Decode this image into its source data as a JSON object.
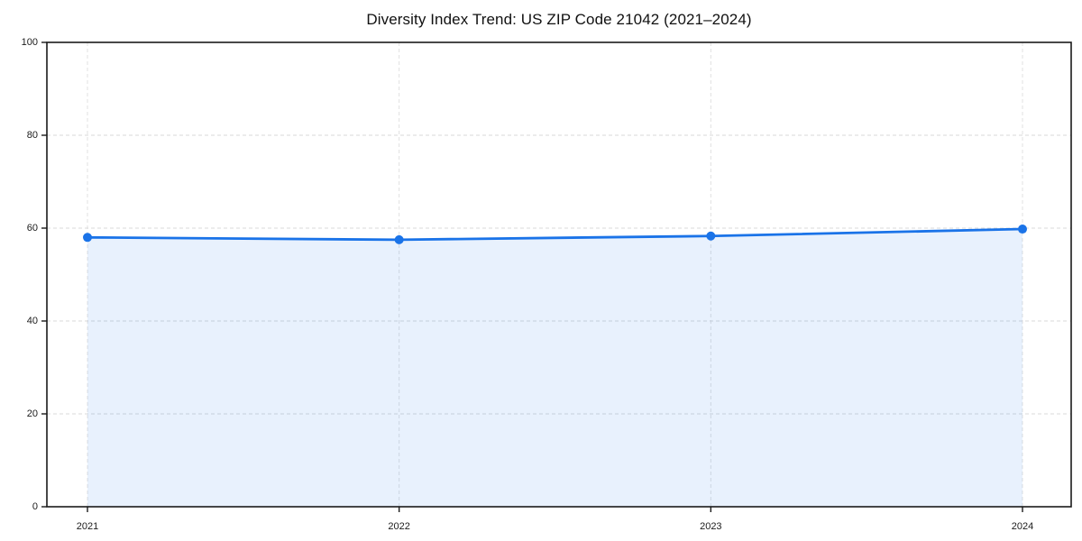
{
  "title": "Diversity Index Trend: US ZIP Code 21042 (2021–2024)",
  "colors": {
    "line": "#1a73e8",
    "marker": "#1a73e8",
    "fill": "#1a73e8",
    "fill_opacity": 0.1,
    "grid_h": "#d8d8d8",
    "grid_v": "#e0e0e0",
    "spine": "#1a1a1a",
    "tick_text": "#1b1b1b",
    "background": "#ffffff"
  },
  "chart_data": {
    "type": "area",
    "title": "Diversity Index Trend: US ZIP Code 21042 (2021–2024)",
    "categories": [
      "2021",
      "2022",
      "2023",
      "2024"
    ],
    "values": [
      58.0,
      57.5,
      58.3,
      59.8
    ],
    "xlabel": "",
    "ylabel": "",
    "ylim": [
      0,
      100
    ],
    "yticks": [
      0,
      20,
      40,
      60,
      80,
      100
    ],
    "grid": true,
    "grid_style": "dashed",
    "legend": "none",
    "markers": true
  }
}
